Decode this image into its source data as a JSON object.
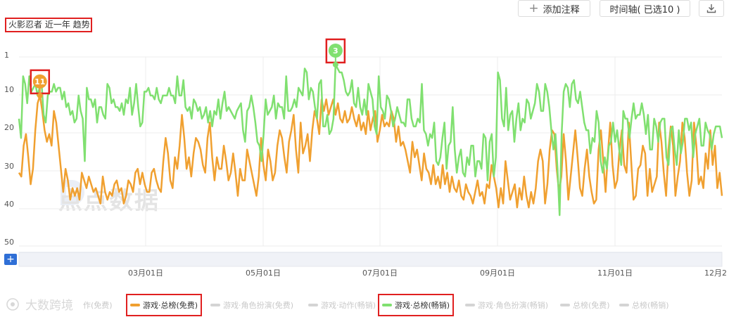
{
  "toolbar": {
    "add_annotation_label": "添加注释",
    "timeline_label": "时间轴( 已选10 )",
    "download_icon": "download-icon"
  },
  "watermark_text": "点点数据",
  "footer_brand": "大数跨境",
  "colors": {
    "free": "#f0a030",
    "paid": "#80e070",
    "highlight_box": "#e02020",
    "zoom_button": "#2f6fd6"
  },
  "chart_data": {
    "type": "line",
    "title": "火影忍者 近一年 趋势",
    "y_inverted": true,
    "ylim": [
      1,
      50
    ],
    "y_ticks": [
      "1",
      "10",
      "20",
      "30",
      "40",
      "50"
    ],
    "x_ticks": [
      "03月01日",
      "05月01日",
      "07月01日",
      "09月01日",
      "11月01日",
      "12月2"
    ],
    "grid": true,
    "legend": [
      {
        "name": "游戏·动作(免费)",
        "active": false,
        "partial_label": "作(免费)"
      },
      {
        "name": "游戏·总榜(免费)",
        "active": true,
        "highlighted": true
      },
      {
        "name": "游戏·角色扮演(免费)",
        "active": false
      },
      {
        "name": "游戏·动作(畅销)",
        "active": false
      },
      {
        "name": "游戏·总榜(畅销)",
        "active": true,
        "highlighted": true
      },
      {
        "name": "游戏·角色扮演(畅销)",
        "active": false
      },
      {
        "name": "总榜(免费)",
        "active": false
      },
      {
        "name": "总榜(畅销)",
        "active": false
      }
    ],
    "markers": [
      {
        "series": "游戏·总榜(免费)",
        "label": "11",
        "value": 11
      },
      {
        "series": "游戏·总榜(畅销)",
        "label": "3",
        "value": 3
      }
    ],
    "series": [
      {
        "name": "游戏·总榜(免费)",
        "color": "#f0a030",
        "values": [
          31,
          32,
          24,
          21,
          27,
          34,
          30,
          20,
          13,
          11,
          15,
          20,
          23,
          21,
          24,
          15,
          18,
          24,
          30,
          36,
          30,
          33,
          38,
          35,
          37,
          35,
          38,
          31,
          33,
          35,
          32,
          34,
          36,
          35,
          37,
          39,
          32,
          36,
          38,
          36,
          37,
          34,
          33,
          36,
          35,
          39,
          37,
          33,
          34,
          36,
          31,
          30,
          34,
          31,
          34,
          36,
          36,
          31,
          30,
          33,
          35,
          36,
          28,
          22,
          26,
          33,
          35,
          27,
          30,
          24,
          16,
          22,
          30,
          27,
          32,
          26,
          22,
          23,
          25,
          29,
          31,
          22,
          18,
          27,
          33,
          27,
          30,
          30,
          24,
          28,
          33,
          31,
          26,
          31,
          37,
          30,
          33,
          33,
          25,
          28,
          31,
          34,
          37,
          32,
          22,
          29,
          33,
          25,
          28,
          33,
          31,
          24,
          20,
          22,
          27,
          31,
          23,
          20,
          16,
          25,
          31,
          18,
          26,
          24,
          21,
          28,
          20,
          15,
          17,
          21,
          12,
          15,
          12,
          16,
          14,
          12,
          16,
          13,
          17,
          18,
          15,
          18,
          17,
          14,
          17,
          19,
          16,
          20,
          18,
          21,
          15,
          20,
          17,
          15,
          23,
          20,
          16,
          19,
          18,
          19,
          15,
          17,
          23,
          19,
          24,
          23,
          25,
          28,
          31,
          23,
          27,
          25,
          29,
          33,
          26,
          30,
          31,
          34,
          29,
          34,
          32,
          35,
          29,
          34,
          31,
          36,
          32,
          35,
          36,
          33,
          37,
          38,
          34,
          36,
          37,
          39,
          36,
          33,
          37,
          36,
          39,
          34,
          35,
          29,
          32,
          35,
          40,
          35,
          39,
          28,
          33,
          38,
          36,
          34,
          40,
          35,
          38,
          32,
          37,
          40,
          36,
          39,
          35,
          28,
          25,
          28,
          39,
          34,
          25,
          20,
          21,
          30,
          36,
          32,
          21,
          28,
          38,
          32,
          26,
          20,
          27,
          35,
          37,
          30,
          25,
          32,
          36,
          39,
          38,
          25,
          20,
          28,
          36,
          26,
          18,
          29,
          35,
          33,
          25,
          20,
          29,
          31,
          18,
          28,
          38,
          37,
          30,
          29,
          24,
          26,
          37,
          30,
          36,
          34,
          32,
          18,
          23,
          31,
          37,
          25,
          19,
          24,
          37,
          32,
          28,
          18,
          22,
          31,
          37,
          33,
          18,
          24,
          34,
          32,
          35,
          26,
          30,
          20,
          29,
          24,
          35,
          31,
          37
        ]
      },
      {
        "name": "游戏·总榜(畅销)",
        "color": "#80e070",
        "values": [
          17,
          22,
          6,
          8,
          13,
          6,
          10,
          9,
          8,
          11,
          9,
          8,
          16,
          18,
          11,
          10,
          10,
          8,
          10,
          9,
          9,
          12,
          10,
          14,
          13,
          16,
          15,
          18,
          17,
          11,
          15,
          17,
          28,
          9,
          12,
          12,
          14,
          12,
          18,
          14,
          14,
          16,
          17,
          8,
          9,
          13,
          12,
          14,
          14,
          15,
          13,
          16,
          12,
          13,
          9,
          16,
          13,
          8,
          14,
          19,
          18,
          10,
          10,
          9,
          11,
          11,
          12,
          9,
          12,
          13,
          11,
          11,
          11,
          9,
          11,
          11,
          13,
          6,
          11,
          11,
          7,
          14,
          15,
          14,
          17,
          12,
          13,
          15,
          14,
          17,
          16,
          14,
          18,
          15,
          19,
          15,
          16,
          12,
          17,
          13,
          10,
          15,
          14,
          15,
          16,
          17,
          15,
          14,
          13,
          20,
          23,
          15,
          14,
          11,
          14,
          18,
          23,
          24,
          28,
          21,
          12,
          16,
          15,
          14,
          11,
          17,
          13,
          14,
          14,
          17,
          6,
          15,
          15,
          14,
          12,
          14,
          9,
          10,
          11,
          4,
          5,
          12,
          9,
          10,
          14,
          17,
          8,
          7,
          19,
          19,
          16,
          21,
          20,
          17,
          3,
          4,
          5,
          5,
          7,
          10,
          11,
          10,
          7,
          13,
          14,
          9,
          14,
          16,
          12,
          16,
          8,
          10,
          12,
          19,
          21,
          6,
          14,
          15,
          17,
          11,
          12,
          15,
          19,
          17,
          14,
          16,
          18,
          18,
          19,
          12,
          12,
          17,
          19,
          19,
          17,
          18,
          8,
          20,
          21,
          24,
          21,
          22,
          18,
          28,
          29,
          27,
          22,
          18,
          30,
          24,
          23,
          14,
          25,
          31,
          27,
          25,
          31,
          32,
          27,
          29,
          24,
          24,
          32,
          28,
          28,
          30,
          21,
          22,
          33,
          23,
          21,
          32,
          27,
          5,
          7,
          17,
          19,
          9,
          20,
          16,
          15,
          23,
          17,
          13,
          20,
          17,
          18,
          12,
          13,
          17,
          15,
          13,
          8,
          10,
          15,
          15,
          8,
          10,
          14,
          20,
          25,
          21,
          30,
          42,
          21,
          10,
          8,
          9,
          14,
          8,
          7,
          12,
          13,
          10,
          14,
          18,
          20,
          20,
          26,
          22,
          23,
          15,
          18,
          28,
          31,
          27,
          30,
          24,
          23,
          18,
          23,
          20,
          25,
          29,
          15,
          17,
          17,
          22,
          17,
          13,
          17,
          16,
          16,
          13,
          16,
          21,
          16,
          25,
          25,
          17,
          19,
          23,
          18,
          17,
          17,
          27,
          29,
          20,
          19,
          25,
          29,
          20,
          26,
          23,
          17,
          17,
          20,
          18,
          27,
          21,
          19,
          17,
          24,
          24,
          18,
          20,
          21,
          25,
          21,
          19,
          19,
          19,
          22
        ]
      }
    ]
  }
}
